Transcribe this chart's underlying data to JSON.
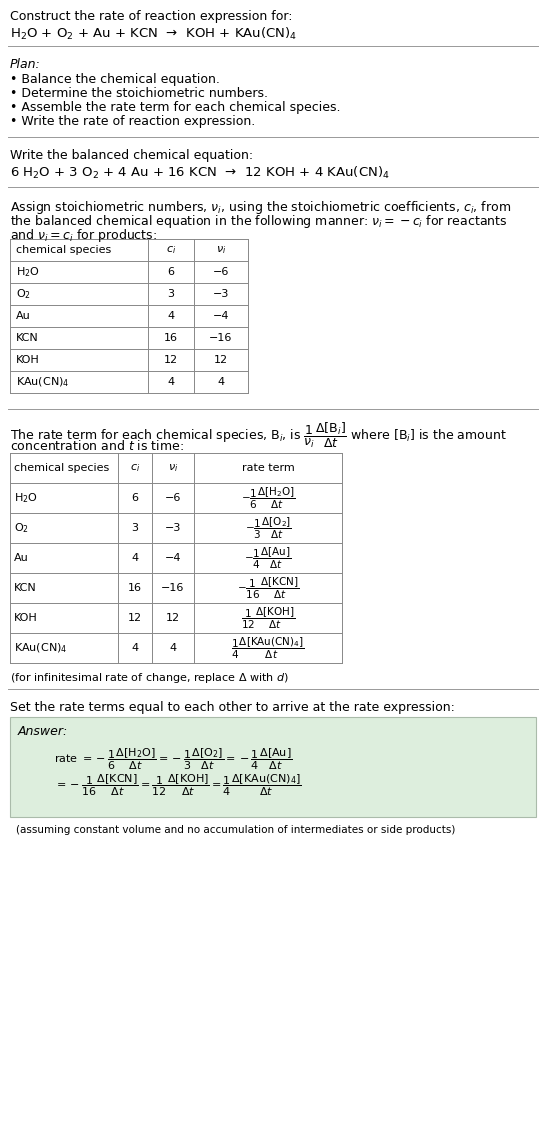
{
  "bg_color": "#ffffff",
  "text_color": "#000000",
  "title_line1": "Construct the rate of reaction expression for:",
  "reaction_unbalanced": "H$_2$O + O$_2$ + Au + KCN  →  KOH + KAu(CN)$_4$",
  "plan_header": "Plan:",
  "plan_items": [
    "• Balance the chemical equation.",
    "• Determine the stoichiometric numbers.",
    "• Assemble the rate term for each chemical species.",
    "• Write the rate of reaction expression."
  ],
  "balanced_header": "Write the balanced chemical equation:",
  "balanced_eq": "6 H$_2$O + 3 O$_2$ + 4 Au + 16 KCN  →  12 KOH + 4 KAu(CN)$_4$",
  "stoich_para": "Assign stoichiometric numbers, $\\nu_i$, using the stoichiometric coefficients, $c_i$, from the balanced chemical equation in the following manner: $\\nu_i = -c_i$ for reactants and $\\nu_i = c_i$ for products:",
  "stoich_line1": "Assign stoichiometric numbers, $\\nu_i$, using the stoichiometric coefficients, $c_i$, from",
  "stoich_line2": "the balanced chemical equation in the following manner: $\\nu_i = -c_i$ for reactants",
  "stoich_line3": "and $\\nu_i = c_i$ for products:",
  "table1_headers": [
    "chemical species",
    "$c_i$",
    "$\\nu_i$"
  ],
  "table1_data": [
    [
      "H$_2$O",
      "6",
      "−6"
    ],
    [
      "O$_2$",
      "3",
      "−3"
    ],
    [
      "Au",
      "4",
      "−4"
    ],
    [
      "KCN",
      "16",
      "−16"
    ],
    [
      "KOH",
      "12",
      "12"
    ],
    [
      "KAu(CN)$_4$",
      "4",
      "4"
    ]
  ],
  "rate_line1": "The rate term for each chemical species, B$_i$, is $\\dfrac{1}{\\nu_i}\\dfrac{\\Delta[\\mathrm{B}_i]}{\\Delta t}$ where [B$_i$] is the amount",
  "rate_line2": "concentration and $t$ is time:",
  "table2_headers": [
    "chemical species",
    "$c_i$",
    "$\\nu_i$",
    "rate term"
  ],
  "table2_data": [
    [
      "H$_2$O",
      "6",
      "−6",
      "$-\\dfrac{1}{6}\\dfrac{\\Delta[\\mathrm{H_2O}]}{\\Delta t}$"
    ],
    [
      "O$_2$",
      "3",
      "−3",
      "$-\\dfrac{1}{3}\\dfrac{\\Delta[\\mathrm{O_2}]}{\\Delta t}$"
    ],
    [
      "Au",
      "4",
      "−4",
      "$-\\dfrac{1}{4}\\dfrac{\\Delta[\\mathrm{Au}]}{\\Delta t}$"
    ],
    [
      "KCN",
      "16",
      "−16",
      "$-\\dfrac{1}{16}\\dfrac{\\Delta[\\mathrm{KCN}]}{\\Delta t}$"
    ],
    [
      "KOH",
      "12",
      "12",
      "$\\dfrac{1}{12}\\dfrac{\\Delta[\\mathrm{KOH}]}{\\Delta t}$"
    ],
    [
      "KAu(CN)$_4$",
      "4",
      "4",
      "$\\dfrac{1}{4}\\dfrac{\\Delta[\\mathrm{KAu(CN)_4}]}{\\Delta t}$"
    ]
  ],
  "infinitesimal_note": "(for infinitesimal rate of change, replace Δ with $d$)",
  "set_rate_header": "Set the rate terms equal to each other to arrive at the rate expression:",
  "answer_label": "Answer:",
  "answer_box_color": "#ddeedd",
  "answer_box_edge": "#aabbaa",
  "answer_line1": "rate $= -\\dfrac{1}{6}\\dfrac{\\Delta[\\mathrm{H_2O}]}{\\Delta t} = -\\dfrac{1}{3}\\dfrac{\\Delta[\\mathrm{O_2}]}{\\Delta t} = -\\dfrac{1}{4}\\dfrac{\\Delta[\\mathrm{Au}]}{\\Delta t}$",
  "answer_line2": "$= -\\dfrac{1}{16}\\dfrac{\\Delta[\\mathrm{KCN}]}{\\Delta t} = \\dfrac{1}{12}\\dfrac{\\Delta[\\mathrm{KOH}]}{\\Delta t} = \\dfrac{1}{4}\\dfrac{\\Delta[\\mathrm{KAu(CN)_4}]}{\\Delta t}$",
  "answer_footnote": "(assuming constant volume and no accumulation of intermediates or side products)"
}
